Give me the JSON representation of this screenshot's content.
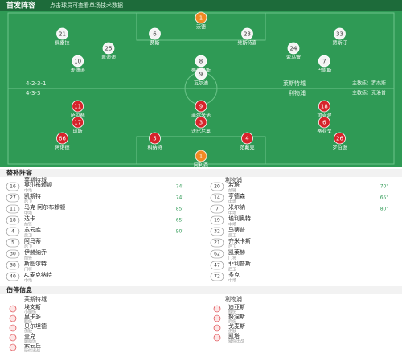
{
  "header": {
    "title": "首发阵容",
    "subtitle": "点击球员可查看单场技术数据"
  },
  "home": {
    "name": "莱斯特城",
    "formation": "4-2-3-1",
    "coach": "主教练：罗杰斯",
    "lines": [
      [
        {
          "n": "1",
          "name": "沃德"
        }
      ],
      [
        {
          "n": "21",
          "name": "佩雷拉"
        },
        {
          "n": "6",
          "name": "费斯"
        },
        {
          "n": "23",
          "name": "维斯特高"
        },
        {
          "n": "33",
          "name": "贾斯汀"
        }
      ],
      [
        {
          "n": "25",
          "name": "恩迪迪"
        },
        {
          "n": "24",
          "name": "索马雷"
        }
      ],
      [
        {
          "n": "10",
          "name": "麦迪逊"
        },
        {
          "n": "8",
          "name": "蒂勒曼斯"
        },
        {
          "n": "7",
          "name": "巴恩斯"
        }
      ],
      [
        {
          "n": "9",
          "name": "瓦尔迪"
        }
      ]
    ]
  },
  "away": {
    "name": "利物浦",
    "formation": "4-3-3",
    "coach": "主教练：克洛普",
    "lines": [
      [
        {
          "n": "1",
          "name": "阿利森"
        }
      ],
      [
        {
          "n": "66",
          "name": "阿诺德"
        },
        {
          "n": "5",
          "name": "科纳特"
        },
        {
          "n": "4",
          "name": "范戴克"
        },
        {
          "n": "26",
          "name": "罗伯逊"
        }
      ],
      [
        {
          "n": "17",
          "name": "琼斯"
        },
        {
          "n": "3",
          "name": "法比尼奥"
        },
        {
          "n": "6",
          "name": "蒂亚戈"
        }
      ],
      [
        {
          "n": "11",
          "name": "萨拉赫"
        },
        {
          "n": "9",
          "name": "菲尔米诺"
        },
        {
          "n": "18",
          "name": "加克波"
        }
      ]
    ]
  },
  "bench": {
    "title": "替补阵容",
    "home": [
      {
        "n": "16",
        "name": "奥尔布赖顿",
        "pos": "中场",
        "sub": "74'"
      },
      {
        "n": "27",
        "name": "凯斯特",
        "pos": "后卫",
        "sub": "74'"
      },
      {
        "n": "11",
        "name": "马克·阿尔布赖顿",
        "pos": "中场",
        "sub": "85'"
      },
      {
        "n": "18",
        "name": "达卡",
        "pos": "前锋",
        "sub": "65'"
      },
      {
        "n": "4",
        "name": "苏云库",
        "pos": "后卫",
        "sub": "90'"
      },
      {
        "n": "5",
        "name": "阿马蒂",
        "pos": "后卫"
      },
      {
        "n": "30",
        "name": "伊赫纳乔",
        "pos": "前锋"
      },
      {
        "n": "38",
        "name": "斯图尔特",
        "pos": "门将"
      },
      {
        "n": "40",
        "name": "A.麦克纳特",
        "pos": "中场"
      }
    ],
    "away": [
      {
        "n": "20",
        "name": "若塔",
        "pos": "前锋",
        "sub": "70'"
      },
      {
        "n": "14",
        "name": "亨德森",
        "pos": "中场",
        "sub": "65'"
      },
      {
        "n": "7",
        "name": "米尔纳",
        "pos": "中场",
        "sub": "80'"
      },
      {
        "n": "19",
        "name": "埃利奥特",
        "pos": "中场"
      },
      {
        "n": "32",
        "name": "马蒂普",
        "pos": "后卫"
      },
      {
        "n": "21",
        "name": "齐米卡斯",
        "pos": "后卫"
      },
      {
        "n": "62",
        "name": "凯莱赫",
        "pos": "门将"
      },
      {
        "n": "47",
        "name": "菲利普斯",
        "pos": "后卫"
      },
      {
        "n": "72",
        "name": "多克",
        "pos": "中场"
      }
    ]
  },
  "injuries": {
    "title": "伤停信息",
    "home": [
      {
        "name": "埃文斯",
        "reason": "小腿伤"
      },
      {
        "name": "里卡多",
        "reason": "膝伤"
      },
      {
        "name": "贝尔坦德",
        "reason": "伤缺"
      },
      {
        "name": "查克",
        "reason": "腿筋伤"
      },
      {
        "name": "索云丘",
        "reason": "疑似出战"
      }
    ],
    "away": [
      {
        "name": "迪亚斯",
        "reason": "膝伤"
      },
      {
        "name": "努涅斯",
        "reason": "肩伤"
      },
      {
        "name": "戈麦斯",
        "reason": "伤缺"
      },
      {
        "name": "凯塔",
        "reason": "疑似出战"
      }
    ]
  }
}
